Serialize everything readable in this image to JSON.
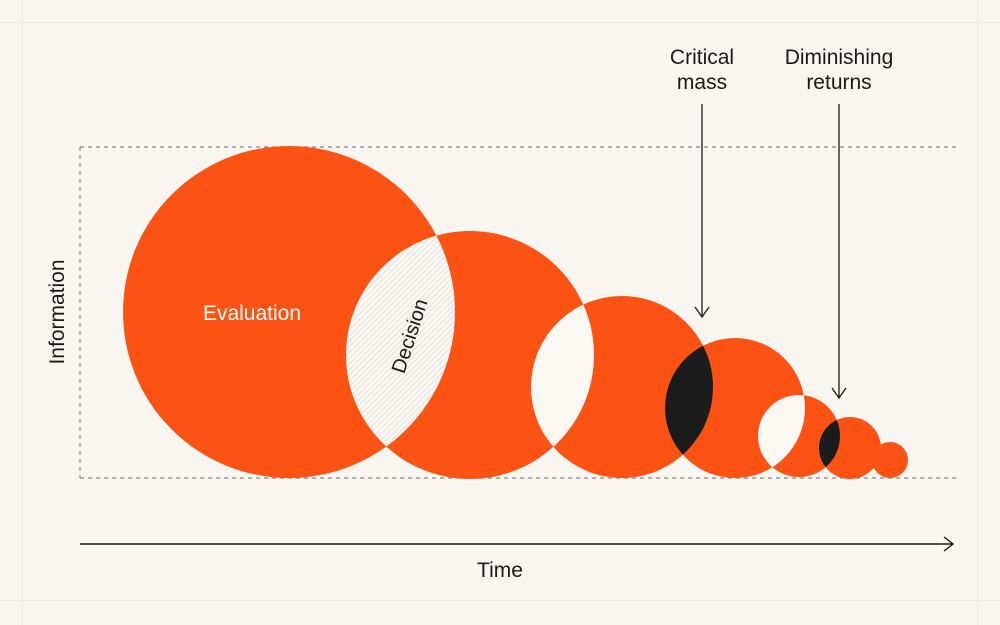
{
  "diagram": {
    "y_axis_label": "Information",
    "x_axis_label": "Time",
    "circle_labels": {
      "evaluation": "Evaluation",
      "decision": "Decision"
    },
    "annotations": {
      "critical_mass": [
        "Critical",
        "mass"
      ],
      "diminishing_returns": [
        "Diminishing",
        "returns"
      ]
    },
    "colors": {
      "circle_fill": "#fc5314",
      "overlap_light": "#fbf8f4",
      "overlap_dark": "#1c1c1c",
      "hatch": "#d6d2cd",
      "line": "#1a1a1a",
      "dashed_frame": "#8a8580",
      "background": "#f9f6f2"
    }
  }
}
